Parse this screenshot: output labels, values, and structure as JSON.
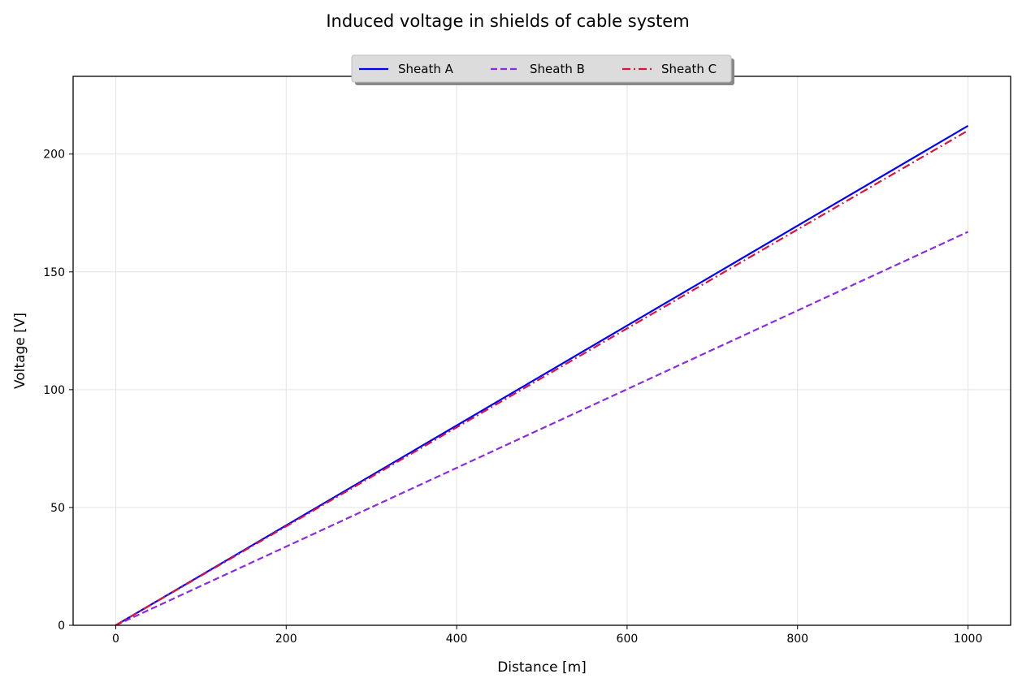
{
  "chart_data": {
    "type": "line",
    "title": "Induced voltage in shields of cable system",
    "xlabel": "Distance [m]",
    "ylabel": "Voltage [V]",
    "xlim": [
      -50,
      1050
    ],
    "ylim": [
      0,
      233
    ],
    "xticks": [
      0,
      200,
      400,
      600,
      800,
      1000
    ],
    "yticks": [
      0,
      50,
      100,
      150,
      200
    ],
    "grid": true,
    "legend": {
      "placement": "top-center"
    },
    "series": [
      {
        "name": "Sheath A",
        "color": "#0000ff",
        "style": "solid",
        "x": [
          0,
          1000
        ],
        "y": [
          0,
          212
        ]
      },
      {
        "name": "Sheath B",
        "color": "#8a2be2",
        "style": "dashed",
        "x": [
          0,
          1000
        ],
        "y": [
          0,
          167
        ]
      },
      {
        "name": "Sheath C",
        "color": "#dc143c",
        "style": "dashdot",
        "x": [
          0,
          1000
        ],
        "y": [
          0,
          210
        ]
      }
    ]
  }
}
